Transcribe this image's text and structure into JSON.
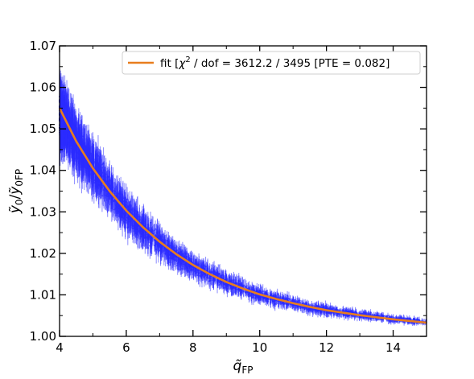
{
  "chart_data": {
    "type": "scatter",
    "title": "",
    "xlabel": "q̃",
    "xlabel_sub": "FP",
    "ylabel": "ỹ",
    "ylabel_sub0": "0",
    "ylabel_slash": "/",
    "ylabel_denom": "ỹ",
    "ylabel_sub1": "0FP",
    "xlim": [
      4,
      15
    ],
    "ylim": [
      1.0,
      1.07
    ],
    "xticks": [
      4,
      6,
      8,
      10,
      12,
      14
    ],
    "xtick_labels": [
      "4",
      "6",
      "8",
      "10",
      "12",
      "14"
    ],
    "yticks": [
      1.0,
      1.01,
      1.02,
      1.03,
      1.04,
      1.05,
      1.06,
      1.07
    ],
    "ytick_labels": [
      "1.00",
      "1.01",
      "1.02",
      "1.03",
      "1.04",
      "1.05",
      "1.06",
      "1.07"
    ],
    "grid": false,
    "legend_position": "top-right",
    "colors": {
      "data": "#2b2bff",
      "fit": "#e87d1e"
    },
    "legend": {
      "prefix": "fit [",
      "chi": "χ",
      "sup": "2",
      "rest": " / dof =  3612.2 / 3495 [PTE = 0.082]"
    },
    "series": [
      {
        "name": "data",
        "kind": "errorbar-scatter",
        "x": [
          4.0,
          4.5,
          5.0,
          5.5,
          6.0,
          6.5,
          7.0,
          7.5,
          8.0,
          8.5,
          9.0,
          9.5,
          10.0,
          10.5,
          11.0,
          11.5,
          12.0,
          12.5,
          13.0,
          13.5,
          14.0,
          14.5,
          15.0
        ],
        "y": [
          1.054,
          1.047,
          1.041,
          1.035,
          1.03,
          1.026,
          1.0225,
          1.0195,
          1.017,
          1.015,
          1.013,
          1.0115,
          1.01,
          1.009,
          1.008,
          1.007,
          1.0063,
          1.0057,
          1.0052,
          1.0047,
          1.0042,
          1.0038,
          1.0034
        ],
        "err": [
          0.01,
          0.0085,
          0.0075,
          0.0065,
          0.0058,
          0.0052,
          0.0046,
          0.0041,
          0.0037,
          0.0033,
          0.003,
          0.0027,
          0.0024,
          0.0022,
          0.002,
          0.0018,
          0.0017,
          0.0015,
          0.0014,
          0.0013,
          0.0012,
          0.0011,
          0.001
        ]
      },
      {
        "name": "fit",
        "kind": "line",
        "x": [
          4.0,
          4.5,
          5.0,
          5.5,
          6.0,
          6.5,
          7.0,
          7.5,
          8.0,
          8.5,
          9.0,
          9.5,
          10.0,
          10.5,
          11.0,
          11.5,
          12.0,
          12.5,
          13.0,
          13.5,
          14.0,
          14.5,
          15.0
        ],
        "y": [
          1.055,
          1.047,
          1.0405,
          1.035,
          1.0303,
          1.0263,
          1.0228,
          1.0198,
          1.0172,
          1.015,
          1.0131,
          1.0115,
          1.0101,
          1.009,
          1.008,
          1.0071,
          1.0063,
          1.0057,
          1.0051,
          1.0046,
          1.0041,
          1.0037,
          1.0033
        ]
      }
    ]
  }
}
